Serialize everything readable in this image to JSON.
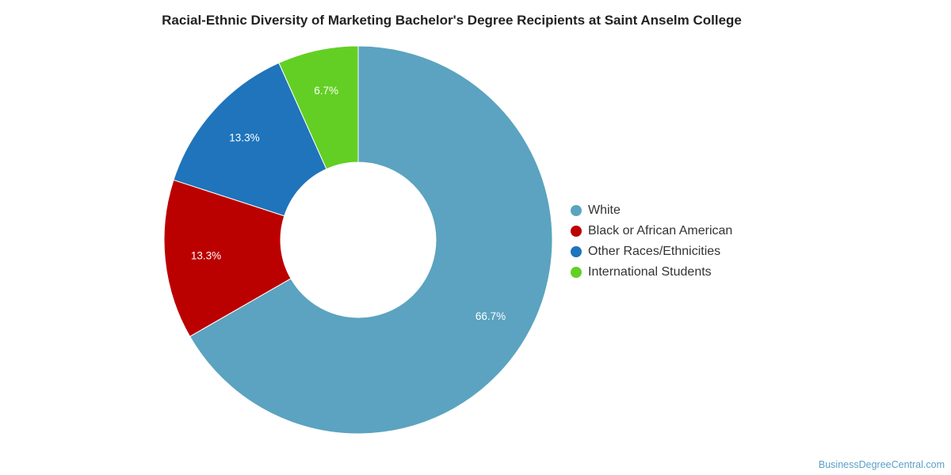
{
  "chart_data": {
    "type": "pie",
    "title": "Racial-Ethnic Diversity of Marketing Bachelor's Degree Recipients at Saint Anselm College",
    "slices": [
      {
        "name": "White",
        "value": 66.7,
        "label": "66.7%",
        "color": "#5ba3c0"
      },
      {
        "name": "Black or African American",
        "value": 13.3,
        "label": "13.3%",
        "color": "#bb0000"
      },
      {
        "name": "Other Races/Ethnicities",
        "value": 13.3,
        "label": "13.3%",
        "color": "#1f74bb"
      },
      {
        "name": "International Students",
        "value": 6.7,
        "label": "6.7%",
        "color": "#63cf24"
      }
    ],
    "legend_position": "right"
  },
  "watermark": "BusinessDegreeCentral.com"
}
